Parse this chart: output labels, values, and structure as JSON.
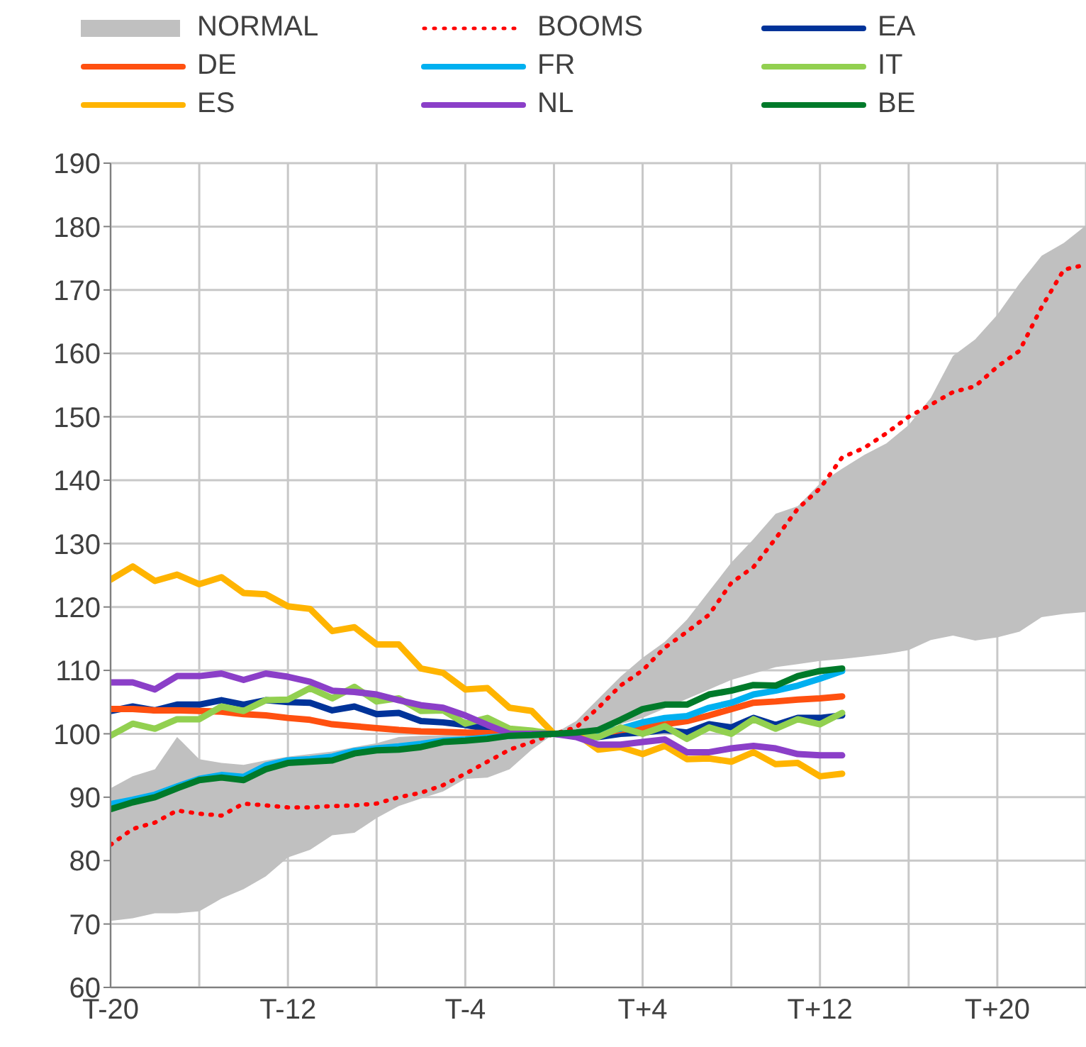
{
  "chart_data": {
    "type": "line",
    "legend": "top",
    "grid": true,
    "categories": [
      "T-20",
      null,
      null,
      null,
      null,
      null,
      null,
      null,
      "T-12",
      null,
      null,
      null,
      null,
      null,
      null,
      null,
      "T-4",
      null,
      null,
      null,
      null,
      null,
      null,
      null,
      "T+4",
      null,
      null,
      null,
      null,
      null,
      null,
      null,
      "T+12",
      null,
      null,
      null,
      null,
      null,
      null,
      null,
      "T+20",
      null,
      null,
      null,
      null
    ],
    "ylim": [
      60,
      190
    ],
    "yticks": [
      60,
      70,
      80,
      90,
      100,
      110,
      120,
      130,
      140,
      150,
      160,
      170,
      180,
      190
    ],
    "series": [
      {
        "name": "NORMAL",
        "type": "line",
        "color": "#c0c0c0",
        "values": [
          null,
          null,
          null,
          null,
          null,
          null,
          null,
          null,
          null,
          null,
          null,
          null,
          null,
          null,
          null,
          null,
          null,
          null,
          null,
          null,
          null,
          null,
          null,
          null,
          null,
          null,
          null,
          null,
          null,
          null,
          null,
          null,
          null,
          null,
          null,
          null,
          null,
          null,
          null,
          null,
          null,
          null,
          null,
          null,
          null
        ],
        "lower": [
          70.5,
          70.9,
          71.7,
          71.7,
          72.0,
          74.0,
          75.5,
          77.5,
          80.5,
          81.7,
          84.0,
          84.4,
          86.7,
          88.6,
          89.8,
          90.9,
          92.9,
          93.1,
          94.4,
          97.5,
          100,
          100.2,
          100.8,
          101.5,
          102.5,
          104,
          105.5,
          107,
          108.5,
          109.5,
          110.5,
          111,
          111.5,
          111.8,
          112.2,
          112.6,
          113.2,
          114.8,
          115.5,
          114.7,
          115.2,
          116.1,
          118.4,
          118.9,
          119.2
        ],
        "upper": [
          91.4,
          93.3,
          94.4,
          99.5,
          96.0,
          95.4,
          95.1,
          95.8,
          96.4,
          96.8,
          97.2,
          97.9,
          98.5,
          99.5,
          99.7,
          99.8,
          100,
          100,
          100,
          100,
          100,
          102,
          105.5,
          109,
          112,
          114.5,
          118,
          122.5,
          127,
          130.7,
          134.7,
          135.9,
          139.5,
          141.8,
          144,
          145.8,
          148.7,
          153,
          159.6,
          162.2,
          166.1,
          171,
          175.4,
          177.4,
          180.2
        ]
      },
      {
        "name": "BOOMS",
        "type": "line",
        "line_style": "dotted",
        "color": "#ff0000",
        "values": [
          82.5,
          85.0,
          86.0,
          87.9,
          87.4,
          87.1,
          89.0,
          88.7,
          88.4,
          88.4,
          88.6,
          88.7,
          89.0,
          90.0,
          90.7,
          91.9,
          93.7,
          95.6,
          97.5,
          98.7,
          100,
          101,
          104.1,
          107.6,
          110,
          113.6,
          116.1,
          118.8,
          123.8,
          126.3,
          130.8,
          135.5,
          138.7,
          143.6,
          145.1,
          147.4,
          150.0,
          151.9,
          153.9,
          154.8,
          157.9,
          160.4,
          167.3,
          173.2,
          174
        ]
      },
      {
        "name": "EA",
        "type": "line",
        "color": "#003399",
        "values": [
          103.6,
          104.3,
          103.7,
          104.6,
          104.6,
          105.3,
          104.6,
          105.3,
          105.0,
          104.9,
          103.7,
          104.3,
          103.1,
          103.3,
          102.0,
          101.8,
          101.4,
          100.8,
          100.2,
          100,
          100,
          99.8,
          99.5,
          100,
          100.2,
          100.6,
          100.2,
          101.5,
          101,
          102.5,
          101.4,
          102.5,
          102.5,
          102.9,
          null,
          null,
          null,
          null,
          null,
          null,
          null,
          null,
          null,
          null,
          null
        ]
      },
      {
        "name": "DE",
        "type": "line",
        "color": "#ff5010",
        "values": [
          103.9,
          103.9,
          103.7,
          103.7,
          103.6,
          103.5,
          103.1,
          102.9,
          102.5,
          102.2,
          101.5,
          101.2,
          100.9,
          100.6,
          100.4,
          100.3,
          100.2,
          100.1,
          100,
          100,
          100,
          100,
          100,
          100.6,
          101,
          101.5,
          102,
          102.9,
          103.9,
          104.9,
          105.1,
          105.4,
          105.6,
          105.9,
          null,
          null,
          null,
          null,
          null,
          null,
          null,
          null,
          null,
          null,
          null
        ]
      },
      {
        "name": "FR",
        "type": "line",
        "color": "#00b0f0",
        "values": [
          88.9,
          89.6,
          90.4,
          91.7,
          92.9,
          93.5,
          93.2,
          95.0,
          95.8,
          96.0,
          96.4,
          97.3,
          97.7,
          98.0,
          98.4,
          98.9,
          99.1,
          99.4,
          99.7,
          99.9,
          100,
          100,
          100.2,
          100.8,
          101.8,
          102.5,
          102.8,
          104.1,
          104.9,
          106.2,
          106.8,
          107.6,
          108.7,
          109.9,
          null,
          null,
          null,
          null,
          null,
          null,
          null,
          null,
          null,
          null,
          null
        ]
      },
      {
        "name": "IT",
        "type": "line",
        "color": "#92d050",
        "values": [
          99.7,
          101.6,
          100.8,
          102.3,
          102.3,
          104.3,
          103.6,
          105.3,
          105.4,
          107.2,
          105.6,
          107.4,
          105.1,
          105.6,
          103.6,
          103.7,
          101.6,
          102.5,
          100.8,
          100.5,
          100,
          99.8,
          99.5,
          101,
          100,
          101.2,
          99.2,
          101,
          100,
          102.3,
          100.8,
          102.3,
          101.5,
          103.3,
          null,
          null,
          null,
          null,
          null,
          null,
          null,
          null,
          null,
          null,
          null
        ]
      },
      {
        "name": "ES",
        "type": "line",
        "color": "#ffb400",
        "values": [
          124.3,
          126.4,
          124.1,
          125.1,
          123.6,
          124.7,
          122.2,
          122.0,
          120.1,
          119.7,
          116.2,
          116.8,
          114.1,
          114.1,
          110.3,
          109.6,
          107.0,
          107.2,
          104.1,
          103.6,
          100,
          100,
          97.5,
          97.9,
          96.8,
          98.1,
          96,
          96.1,
          95.6,
          97.1,
          95.2,
          95.4,
          93.3,
          93.7,
          null,
          null,
          null,
          null,
          null,
          null,
          null,
          null,
          null,
          null,
          null
        ]
      },
      {
        "name": "NL",
        "type": "line",
        "color": "#8b3fc8",
        "values": [
          108.1,
          108.1,
          107.0,
          109.1,
          109.1,
          109.5,
          108.5,
          109.5,
          109.0,
          108.2,
          106.8,
          106.6,
          106.2,
          105.3,
          104.5,
          104.1,
          102.9,
          101.4,
          100,
          100,
          100,
          99.5,
          98.3,
          98.3,
          98.7,
          99.1,
          97.1,
          97.1,
          97.7,
          98.1,
          97.7,
          96.8,
          96.6,
          96.6,
          null,
          null,
          null,
          null,
          null,
          null,
          null,
          null,
          null,
          null,
          null
        ]
      },
      {
        "name": "BE",
        "type": "line",
        "color": "#007a2a",
        "values": [
          88.1,
          89.2,
          90.0,
          91.4,
          92.7,
          93.1,
          92.7,
          94.4,
          95.4,
          95.6,
          95.8,
          96.9,
          97.4,
          97.5,
          97.9,
          98.7,
          98.9,
          99.2,
          99.7,
          99.8,
          100,
          100.2,
          100.6,
          102.2,
          103.9,
          104.6,
          104.6,
          106.2,
          106.8,
          107.7,
          107.6,
          109.1,
          109.9,
          110.3,
          null,
          null,
          null,
          null,
          null,
          null,
          null,
          null,
          null,
          null,
          null
        ]
      }
    ]
  }
}
